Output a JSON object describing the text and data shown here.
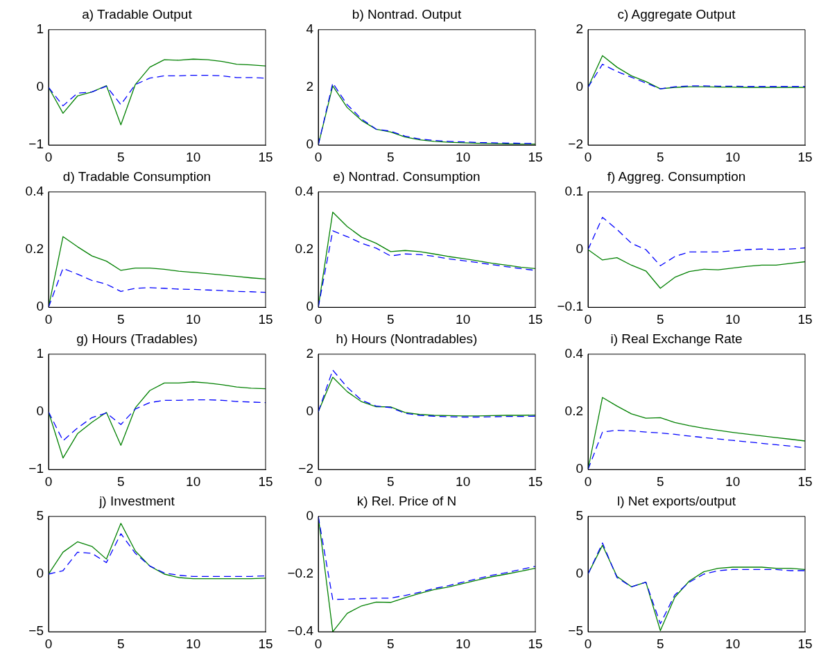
{
  "chart_data": [
    {
      "type": "line",
      "title": "a) Tradable Output",
      "x": [
        0,
        1,
        2,
        3,
        4,
        5,
        6,
        7,
        8,
        9,
        10,
        11,
        12,
        13,
        14,
        15
      ],
      "xlim": [
        0,
        15
      ],
      "xticks": [
        0,
        5,
        10,
        15
      ],
      "ylim": [
        -1,
        1
      ],
      "yticks": [
        -1,
        0,
        1
      ],
      "marker": "none",
      "grid": false,
      "legend": false,
      "series": [
        {
          "color": "#008000",
          "line_style": "solid",
          "values": [
            0,
            -0.45,
            -0.15,
            -0.08,
            0.03,
            -0.65,
            0.05,
            0.35,
            0.48,
            0.47,
            0.49,
            0.48,
            0.45,
            0.4,
            0.39,
            0.37
          ]
        },
        {
          "color": "#0000ff",
          "line_style": "dashed",
          "values": [
            0,
            -0.32,
            -0.1,
            -0.08,
            0.02,
            -0.3,
            0.05,
            0.16,
            0.2,
            0.2,
            0.21,
            0.21,
            0.2,
            0.17,
            0.17,
            0.16
          ]
        }
      ]
    },
    {
      "type": "line",
      "title": "b) Nontrad. Output",
      "x": [
        0,
        1,
        2,
        3,
        4,
        5,
        6,
        7,
        8,
        9,
        10,
        11,
        12,
        13,
        14,
        15
      ],
      "xlim": [
        0,
        15
      ],
      "xticks": [
        0,
        5,
        10,
        15
      ],
      "ylim": [
        0,
        4
      ],
      "yticks": [
        0,
        2,
        4
      ],
      "marker": "none",
      "grid": false,
      "legend": false,
      "series": [
        {
          "color": "#008000",
          "line_style": "solid",
          "values": [
            0,
            2.05,
            1.3,
            0.85,
            0.55,
            0.45,
            0.28,
            0.18,
            0.13,
            0.1,
            0.08,
            0.06,
            0.05,
            0.04,
            0.03,
            0.03
          ]
        },
        {
          "color": "#0000ff",
          "line_style": "dashed",
          "values": [
            0,
            2.15,
            1.4,
            0.9,
            0.55,
            0.48,
            0.31,
            0.21,
            0.16,
            0.13,
            0.11,
            0.09,
            0.08,
            0.07,
            0.06,
            0.05
          ]
        }
      ]
    },
    {
      "type": "line",
      "title": "c) Aggregate Output",
      "x": [
        0,
        1,
        2,
        3,
        4,
        5,
        6,
        7,
        8,
        9,
        10,
        11,
        12,
        13,
        14,
        15
      ],
      "xlim": [
        0,
        15
      ],
      "xticks": [
        0,
        5,
        10,
        15
      ],
      "ylim": [
        -2,
        2
      ],
      "yticks": [
        -2,
        0,
        2
      ],
      "marker": "none",
      "grid": false,
      "legend": false,
      "series": [
        {
          "color": "#008000",
          "line_style": "solid",
          "values": [
            0,
            1.1,
            0.7,
            0.4,
            0.2,
            -0.05,
            0,
            0.02,
            0.02,
            0.01,
            0.01,
            0,
            0,
            0,
            0,
            0
          ]
        },
        {
          "color": "#0000ff",
          "line_style": "dashed",
          "values": [
            0,
            0.8,
            0.55,
            0.35,
            0.15,
            -0.05,
            0.02,
            0.05,
            0.05,
            0.04,
            0.04,
            0.03,
            0.03,
            0.03,
            0.03,
            0.03
          ]
        }
      ]
    },
    {
      "type": "line",
      "title": "d) Tradable Consumption",
      "x": [
        0,
        1,
        2,
        3,
        4,
        5,
        6,
        7,
        8,
        9,
        10,
        11,
        12,
        13,
        14,
        15
      ],
      "xlim": [
        0,
        15
      ],
      "xticks": [
        0,
        5,
        10,
        15
      ],
      "ylim": [
        0,
        0.4
      ],
      "yticks": [
        0,
        0.2,
        0.4
      ],
      "marker": "none",
      "grid": false,
      "legend": false,
      "series": [
        {
          "color": "#008000",
          "line_style": "solid",
          "values": [
            0,
            0.245,
            0.21,
            0.178,
            0.16,
            0.128,
            0.136,
            0.136,
            0.132,
            0.125,
            0.121,
            0.117,
            0.112,
            0.107,
            0.102,
            0.098
          ]
        },
        {
          "color": "#0000ff",
          "line_style": "dashed",
          "values": [
            0,
            0.135,
            0.115,
            0.093,
            0.08,
            0.055,
            0.066,
            0.068,
            0.066,
            0.063,
            0.062,
            0.06,
            0.058,
            0.055,
            0.054,
            0.052
          ]
        }
      ]
    },
    {
      "type": "line",
      "title": "e) Nontrad. Consumption",
      "x": [
        0,
        1,
        2,
        3,
        4,
        5,
        6,
        7,
        8,
        9,
        10,
        11,
        12,
        13,
        14,
        15
      ],
      "xlim": [
        0,
        15
      ],
      "xticks": [
        0,
        5,
        10,
        15
      ],
      "ylim": [
        0,
        0.4
      ],
      "yticks": [
        0,
        0.2,
        0.4
      ],
      "marker": "none",
      "grid": false,
      "legend": false,
      "series": [
        {
          "color": "#008000",
          "line_style": "solid",
          "values": [
            0,
            0.33,
            0.28,
            0.243,
            0.222,
            0.193,
            0.197,
            0.193,
            0.185,
            0.176,
            0.169,
            0.161,
            0.153,
            0.146,
            0.139,
            0.134
          ]
        },
        {
          "color": "#0000ff",
          "line_style": "dashed",
          "values": [
            0,
            0.265,
            0.245,
            0.222,
            0.205,
            0.178,
            0.185,
            0.183,
            0.177,
            0.168,
            0.162,
            0.155,
            0.148,
            0.141,
            0.134,
            0.128
          ]
        }
      ]
    },
    {
      "type": "line",
      "title": "f) Aggreg. Consumption",
      "x": [
        0,
        1,
        2,
        3,
        4,
        5,
        6,
        7,
        8,
        9,
        10,
        11,
        12,
        13,
        14,
        15
      ],
      "xlim": [
        0,
        15
      ],
      "xticks": [
        0,
        5,
        10,
        15
      ],
      "ylim": [
        -0.1,
        0.1
      ],
      "yticks": [
        -0.1,
        0,
        0.1
      ],
      "marker": "none",
      "grid": false,
      "legend": false,
      "series": [
        {
          "color": "#008000",
          "line_style": "solid",
          "values": [
            0,
            -0.018,
            -0.014,
            -0.027,
            -0.037,
            -0.067,
            -0.048,
            -0.038,
            -0.034,
            -0.035,
            -0.032,
            -0.029,
            -0.027,
            -0.027,
            -0.024,
            -0.021
          ]
        },
        {
          "color": "#0000ff",
          "line_style": "dashed",
          "values": [
            0,
            0.056,
            0.035,
            0.011,
            0,
            -0.028,
            -0.012,
            -0.004,
            -0.004,
            -0.004,
            -0.002,
            0,
            0.001,
            0,
            0.001,
            0.003
          ]
        }
      ]
    },
    {
      "type": "line",
      "title": "g) Hours (Tradables)",
      "x": [
        0,
        1,
        2,
        3,
        4,
        5,
        6,
        7,
        8,
        9,
        10,
        11,
        12,
        13,
        14,
        15
      ],
      "xlim": [
        0,
        15
      ],
      "xticks": [
        0,
        5,
        10,
        15
      ],
      "ylim": [
        -1,
        1
      ],
      "yticks": [
        -1,
        0,
        1
      ],
      "marker": "none",
      "grid": false,
      "legend": false,
      "series": [
        {
          "color": "#008000",
          "line_style": "solid",
          "values": [
            0,
            -0.8,
            -0.38,
            -0.18,
            -0.01,
            -0.58,
            0.07,
            0.37,
            0.5,
            0.5,
            0.52,
            0.5,
            0.47,
            0.43,
            0.41,
            0.4
          ]
        },
        {
          "color": "#0000ff",
          "line_style": "dashed",
          "values": [
            0,
            -0.5,
            -0.28,
            -0.1,
            -0.02,
            -0.22,
            0.05,
            0.16,
            0.2,
            0.2,
            0.21,
            0.21,
            0.2,
            0.18,
            0.17,
            0.16
          ]
        }
      ]
    },
    {
      "type": "line",
      "title": "h) Hours (Nontradables)",
      "x": [
        0,
        1,
        2,
        3,
        4,
        5,
        6,
        7,
        8,
        9,
        10,
        11,
        12,
        13,
        14,
        15
      ],
      "xlim": [
        0,
        15
      ],
      "xticks": [
        0,
        5,
        10,
        15
      ],
      "ylim": [
        -2,
        2
      ],
      "yticks": [
        -2,
        0,
        2
      ],
      "marker": "none",
      "grid": false,
      "legend": false,
      "series": [
        {
          "color": "#008000",
          "line_style": "solid",
          "values": [
            0,
            1.2,
            0.7,
            0.35,
            0.18,
            0.17,
            -0.02,
            -0.09,
            -0.12,
            -0.13,
            -0.14,
            -0.14,
            -0.13,
            -0.12,
            -0.12,
            -0.11
          ]
        },
        {
          "color": "#0000ff",
          "line_style": "dashed",
          "values": [
            0,
            1.45,
            0.85,
            0.4,
            0.2,
            0.15,
            -0.05,
            -0.12,
            -0.15,
            -0.17,
            -0.18,
            -0.18,
            -0.17,
            -0.16,
            -0.16,
            -0.15
          ]
        }
      ]
    },
    {
      "type": "line",
      "title": "i) Real Exchange Rate",
      "x": [
        0,
        1,
        2,
        3,
        4,
        5,
        6,
        7,
        8,
        9,
        10,
        11,
        12,
        13,
        14,
        15
      ],
      "xlim": [
        0,
        15
      ],
      "xticks": [
        0,
        5,
        10,
        15
      ],
      "ylim": [
        0,
        0.4
      ],
      "yticks": [
        0,
        0.2,
        0.4
      ],
      "marker": "none",
      "grid": false,
      "legend": false,
      "series": [
        {
          "color": "#008000",
          "line_style": "solid",
          "values": [
            0,
            0.25,
            0.22,
            0.193,
            0.178,
            0.18,
            0.163,
            0.152,
            0.143,
            0.136,
            0.129,
            0.123,
            0.117,
            0.111,
            0.105,
            0.099
          ]
        },
        {
          "color": "#0000ff",
          "line_style": "dashed",
          "values": [
            0,
            0.13,
            0.136,
            0.134,
            0.13,
            0.127,
            0.122,
            0.116,
            0.111,
            0.106,
            0.101,
            0.096,
            0.091,
            0.086,
            0.081,
            0.075
          ]
        }
      ]
    },
    {
      "type": "line",
      "title": "j) Investment",
      "x": [
        0,
        1,
        2,
        3,
        4,
        5,
        6,
        7,
        8,
        9,
        10,
        11,
        12,
        13,
        14,
        15
      ],
      "xlim": [
        0,
        15
      ],
      "xticks": [
        0,
        5,
        10,
        15
      ],
      "ylim": [
        -5,
        5
      ],
      "yticks": [
        -5,
        0,
        5
      ],
      "marker": "none",
      "grid": false,
      "legend": false,
      "series": [
        {
          "color": "#008000",
          "line_style": "solid",
          "values": [
            0,
            1.9,
            2.8,
            2.4,
            1.3,
            4.4,
            2.0,
            0.7,
            0,
            -0.3,
            -0.4,
            -0.4,
            -0.4,
            -0.4,
            -0.4,
            -0.35
          ]
        },
        {
          "color": "#0000ff",
          "line_style": "dashed",
          "values": [
            0,
            0.3,
            1.9,
            1.8,
            1.0,
            3.5,
            1.8,
            0.7,
            0.1,
            -0.1,
            -0.2,
            -0.2,
            -0.2,
            -0.2,
            -0.2,
            -0.15
          ]
        }
      ]
    },
    {
      "type": "line",
      "title": "k) Rel. Price of N",
      "x": [
        0,
        1,
        2,
        3,
        4,
        5,
        6,
        7,
        8,
        9,
        10,
        11,
        12,
        13,
        14,
        15
      ],
      "xlim": [
        0,
        15
      ],
      "xticks": [
        0,
        5,
        10,
        15
      ],
      "ylim": [
        -0.4,
        0
      ],
      "yticks": [
        -0.4,
        -0.2,
        0
      ],
      "marker": "none",
      "grid": false,
      "legend": false,
      "series": [
        {
          "color": "#008000",
          "line_style": "solid",
          "values": [
            0,
            -0.4,
            -0.336,
            -0.31,
            -0.297,
            -0.298,
            -0.282,
            -0.267,
            -0.254,
            -0.245,
            -0.233,
            -0.221,
            -0.209,
            -0.2,
            -0.19,
            -0.18
          ]
        },
        {
          "color": "#0000ff",
          "line_style": "dashed",
          "values": [
            0,
            -0.288,
            -0.287,
            -0.285,
            -0.283,
            -0.283,
            -0.274,
            -0.263,
            -0.25,
            -0.24,
            -0.228,
            -0.216,
            -0.204,
            -0.195,
            -0.184,
            -0.173
          ]
        }
      ]
    },
    {
      "type": "line",
      "title": "l) Net exports/output",
      "x": [
        0,
        1,
        2,
        3,
        4,
        5,
        6,
        7,
        8,
        9,
        10,
        11,
        12,
        13,
        14,
        15
      ],
      "xlim": [
        0,
        15
      ],
      "xticks": [
        0,
        5,
        10,
        15
      ],
      "ylim": [
        -5,
        5
      ],
      "yticks": [
        -5,
        0,
        5
      ],
      "marker": "none",
      "grid": false,
      "legend": false,
      "series": [
        {
          "color": "#008000",
          "line_style": "solid",
          "values": [
            0,
            2.5,
            -0.2,
            -1.1,
            -0.7,
            -4.9,
            -2.0,
            -0.6,
            0.2,
            0.5,
            0.6,
            0.6,
            0.6,
            0.5,
            0.5,
            0.4
          ]
        },
        {
          "color": "#0000ff",
          "line_style": "dashed",
          "values": [
            0,
            2.7,
            -0.3,
            -1.1,
            -0.7,
            -4.3,
            -1.8,
            -0.7,
            0,
            0.3,
            0.4,
            0.4,
            0.4,
            0.4,
            0.3,
            0.3
          ]
        }
      ]
    }
  ]
}
